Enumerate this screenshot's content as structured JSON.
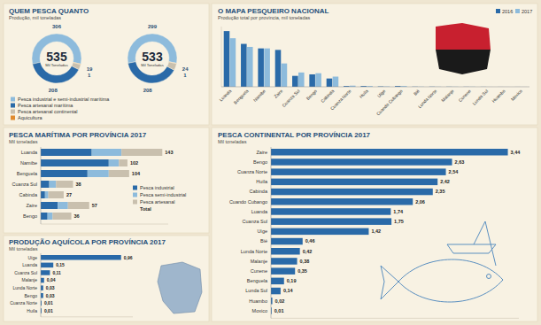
{
  "chart_data": [
    {
      "type": "pie",
      "title": "QUEM PESCA QUANTO",
      "subtitle": "Produção, mil toneladas",
      "categories": [
        "Pesca industrial e semi-industrial marítima",
        "Pesca artesanal marítima",
        "Pesca artesanal continental",
        "Aquicultura"
      ],
      "colors": [
        "#8dbbdc",
        "#2a6aa8",
        "#c9c0ae",
        "#e08a2e"
      ],
      "series": [
        {
          "values": [
            306,
            208,
            19,
            1
          ],
          "total": 535
        },
        {
          "values": [
            299,
            208,
            24,
            1
          ],
          "total": 533
        }
      ],
      "total_label": "Mil Toneladas",
      "data_labels": true,
      "legend": "bottom"
    },
    {
      "type": "bar",
      "title": "O MAPA PESQUEIRO NACIONAL",
      "subtitle": "Produção total por província, mil toneladas",
      "categories": [
        "Luanda",
        "Benguela",
        "Namibe",
        "Zaire",
        "Cuanza Sul",
        "Bengo",
        "Cabinda",
        "Cuanza Norte",
        "Huíla",
        "Uíge",
        "Cuando Cubango",
        "Bié",
        "Lunda Norte",
        "Malanje",
        "Cunene",
        "Lunda Sul",
        "Huambo",
        "Moxico"
      ],
      "series": [
        {
          "name": "2016",
          "color": "#2a6aa8",
          "values": [
            148,
            114,
            102,
            98,
            29,
            33,
            22,
            2,
            2,
            1,
            2,
            0.5,
            0.5,
            0.4,
            0.3,
            0.2,
            0.1,
            0.1
          ]
        },
        {
          "name": "2017",
          "color": "#8dbbdc",
          "values": [
            129,
            106,
            102,
            62,
            38,
            36,
            27,
            3,
            2,
            1,
            2,
            0.5,
            0.4,
            0.4,
            0.4,
            0.1,
            0.1,
            0.1
          ]
        }
      ],
      "ylim": [
        0,
        160
      ],
      "tick_labels": "x",
      "legend": "top-right"
    },
    {
      "type": "bar",
      "orientation": "horizontal",
      "stacked": true,
      "title": "PESCA MARÍTIMA POR PROVÍNCIA 2017",
      "subtitle": "Mil toneladas",
      "categories": [
        "Luanda",
        "Namibe",
        "Benguela",
        "Cuanza Sul",
        "Cabinda",
        "Zaire",
        "Bengo"
      ],
      "series": [
        {
          "name": "Pesca industrial",
          "color": "#2a6aa8",
          "values": [
            60,
            80,
            55,
            10,
            5,
            20,
            8
          ]
        },
        {
          "name": "Pesca semi-industrial",
          "color": "#8dbbdc",
          "values": [
            35,
            12,
            25,
            8,
            4,
            12,
            6
          ]
        },
        {
          "name": "Pesca artesanal",
          "color": "#c9c0ae",
          "values": [
            48,
            10,
            24,
            20,
            18,
            25,
            22
          ]
        }
      ],
      "totals": [
        143,
        102,
        104,
        38,
        27,
        57,
        36
      ],
      "total_label": "Total",
      "xlim": [
        0,
        150
      ],
      "tick_labels": "y",
      "legend": "bottom-right"
    },
    {
      "type": "bar",
      "orientation": "horizontal",
      "title": "PRODUÇÃO AQUÍCOLA POR PROVÍNCIA 2017",
      "subtitle": "Mil toneladas",
      "categories": [
        "Uíge",
        "Luanda",
        "Cuanza Sul",
        "Malanje",
        "Lunda Norte",
        "Bengo",
        "Cuanza Norte",
        "Huíla"
      ],
      "values": [
        0.96,
        0.15,
        0.11,
        0.04,
        0.03,
        0.03,
        0.01,
        0.01
      ],
      "value_labels": [
        "0,96",
        "0,15",
        "0,11",
        "0,04",
        "0,03",
        "0,03",
        "0,01",
        "0,01"
      ],
      "color": "#2a6aa8",
      "xlim": [
        0,
        1.1
      ],
      "data_labels": true,
      "tick_labels": "y"
    },
    {
      "type": "bar",
      "orientation": "horizontal",
      "title": "PESCA CONTINENTAL POR PROVÍNCIA 2017",
      "subtitle": "Mil toneladas",
      "categories": [
        "Zaire",
        "Bengo",
        "Cuanza Norte",
        "Huíla",
        "Cabinda",
        "Cuando Cubango",
        "Luanda",
        "Cuanza Sul",
        "Uíge",
        "Bié",
        "Lunda Norte",
        "Malanje",
        "Cunene",
        "Benguela",
        "Lunda Sul",
        "Huambo",
        "Moxico"
      ],
      "values": [
        3.44,
        2.63,
        2.54,
        2.42,
        2.35,
        2.06,
        1.74,
        1.75,
        1.42,
        0.46,
        0.42,
        0.38,
        0.35,
        0.19,
        0.14,
        0.02,
        0.01
      ],
      "value_labels": [
        "3,44",
        "2,63",
        "2,54",
        "2,42",
        "2,35",
        "2,06",
        "1,74",
        "1,75",
        "1,42",
        "0,46",
        "0,42",
        "0,38",
        "0,35",
        "0,19",
        "0,14",
        "0,02",
        "0,01"
      ],
      "color": "#2a6aa8",
      "xlim": [
        0,
        3.6
      ],
      "data_labels": true,
      "tick_labels": "y"
    }
  ]
}
